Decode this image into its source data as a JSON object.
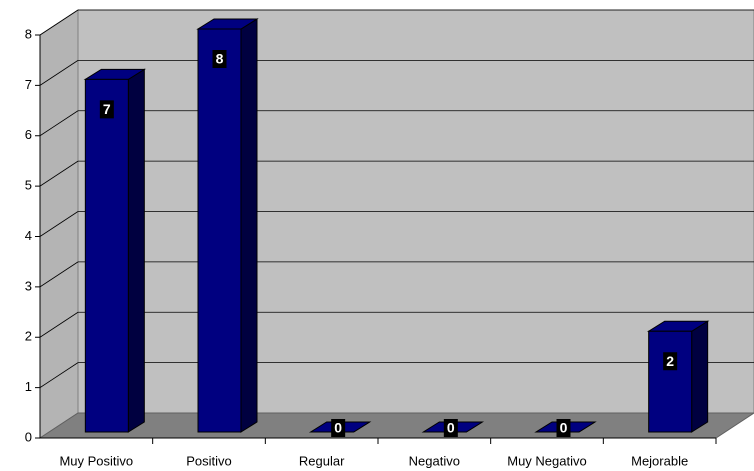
{
  "chart_data": {
    "type": "bar",
    "categories": [
      "Muy Positivo",
      "Positivo",
      "Regular",
      "Negativo",
      "Muy Negativo",
      "Mejorable"
    ],
    "values": [
      7,
      8,
      0,
      0,
      0,
      2
    ],
    "color": "#000080",
    "ylim": [
      0,
      8
    ],
    "yticks": [
      0,
      1,
      2,
      3,
      4,
      5,
      6,
      7,
      8
    ],
    "grid": true
  }
}
